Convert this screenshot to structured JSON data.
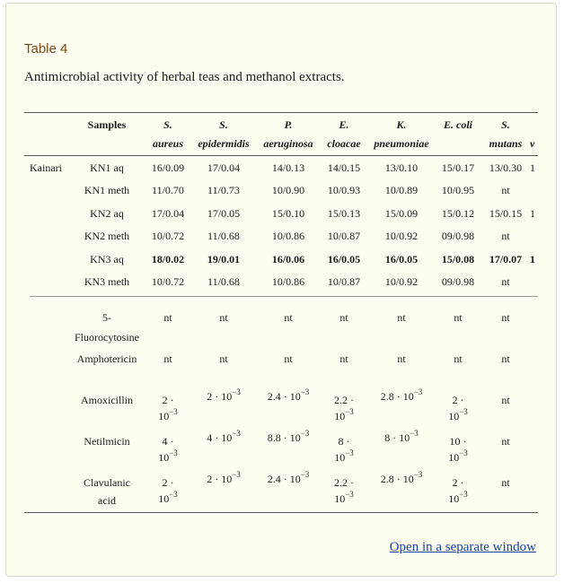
{
  "table_label": "Table 4",
  "caption": "Antimicrobial activity of herbal teas and methanol extracts.",
  "header": {
    "samples": "Samples",
    "columns": [
      {
        "l1": "S.",
        "l2": "aureus"
      },
      {
        "l1": "S.",
        "l2": "epidermidis"
      },
      {
        "l1": "P.",
        "l2": "aeruginosa"
      },
      {
        "l1": "E.",
        "l2": "cloacae"
      },
      {
        "l1": "K.",
        "l2": "pneumoniae"
      },
      {
        "l1": "E. coli",
        "l2": ""
      },
      {
        "l1": "S.",
        "l2": "mutans"
      },
      {
        "l1": "",
        "l2": "v"
      }
    ]
  },
  "group": "Kainari",
  "rows": [
    {
      "sample": "KN1 aq",
      "bold": false,
      "values": [
        "16/0.09",
        "17/0.04",
        "14/0.13",
        "14/0.15",
        "13/0.10",
        "15/0.17",
        "13/0.30",
        "1"
      ]
    },
    {
      "sample": "KN1 meth",
      "bold": false,
      "values": [
        "11/0.70",
        "11/0.73",
        "10/0.90",
        "10/0.93",
        "10/0.89",
        "10/0.95",
        "nt",
        ""
      ]
    },
    {
      "sample": "KN2 aq",
      "bold": false,
      "values": [
        "17/0.04",
        "17/0.05",
        "15/0.10",
        "15/0.13",
        "15/0.09",
        "15/0.12",
        "15/0.15",
        "1"
      ]
    },
    {
      "sample": "KN2 meth",
      "bold": false,
      "values": [
        "10/0.72",
        "11/0.68",
        "10/0.86",
        "10/0.87",
        "10/0.92",
        "09/0.98",
        "nt",
        ""
      ]
    },
    {
      "sample": "KN3 aq",
      "bold": true,
      "values": [
        "18/0.02",
        "19/0.01",
        "16/0.06",
        "16/0.05",
        "16/0.05",
        "15/0.08",
        "17/0.07",
        "1"
      ]
    },
    {
      "sample": "KN3 meth",
      "bold": false,
      "values": [
        "10/0.72",
        "11/0.68",
        "10/0.86",
        "10/0.87",
        "10/0.92",
        "09/0.98",
        "nt",
        ""
      ]
    }
  ],
  "controls": {
    "fluoro": {
      "name1": "5-",
      "name2": "Fluorocytosine",
      "values": [
        "nt",
        "nt",
        "nt",
        "nt",
        "nt",
        "nt",
        "nt"
      ]
    },
    "ampho": {
      "name": "Amphotericin",
      "values": [
        "nt",
        "nt",
        "nt",
        "nt",
        "nt",
        "nt",
        "nt"
      ]
    },
    "amox": {
      "name": "Amoxicillin",
      "c1a": "2 ·",
      "c1b": "10",
      "c2": "2 · 10",
      "c3": "2.4 · 10",
      "c4a": "2.2 ·",
      "c4b": "10",
      "c5": "2.8 · 10",
      "c6a": "2 ·",
      "c6b": "10",
      "c7": "nt",
      "exp": "−3"
    },
    "netil": {
      "name": "Netilmicin",
      "c1a": "4 ·",
      "c1b": "10",
      "c2": "4 · 10",
      "c3": "8.8 · 10",
      "c4a": "8 ·",
      "c4b": "10",
      "c5": "8 · 10",
      "c6a": "10 ·",
      "c6b": "10",
      "c7": "nt",
      "exp": "−3"
    },
    "clav": {
      "name1": "Clavulanic",
      "name2": "acid",
      "c1a": "2 ·",
      "c1b": "10",
      "c2": "2 · 10",
      "c3": "2.4 · 10",
      "c4a": "2.2 ·",
      "c4b": "10",
      "c5": "2.8 · 10",
      "c6a": "2 ·",
      "c6b": "10",
      "c7": "nt",
      "exp": "−3"
    }
  },
  "link_text": "Open in a separate window"
}
